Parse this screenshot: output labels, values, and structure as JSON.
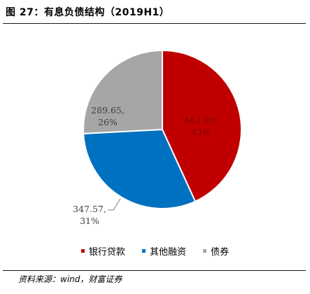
{
  "figure_title": "图 27：有息负债结构（2019H1）",
  "source_note": "资料来源：wind，财富证券",
  "chart_data": {
    "type": "pie",
    "labels": [
      "银行贷款",
      "其他融资",
      "债券"
    ],
    "values": [
      483.99,
      347.57,
      289.65
    ],
    "percent_labels": [
      "43%",
      "31%",
      "26%"
    ],
    "value_labels": [
      "483.99,",
      "347.57,",
      "289.65,"
    ],
    "colors": [
      "#c00000",
      "#0070c0",
      "#a6a6a6"
    ],
    "label_text_colors": [
      "#7f0000",
      "#404040",
      "#404040"
    ],
    "legend_position": "bottom"
  }
}
